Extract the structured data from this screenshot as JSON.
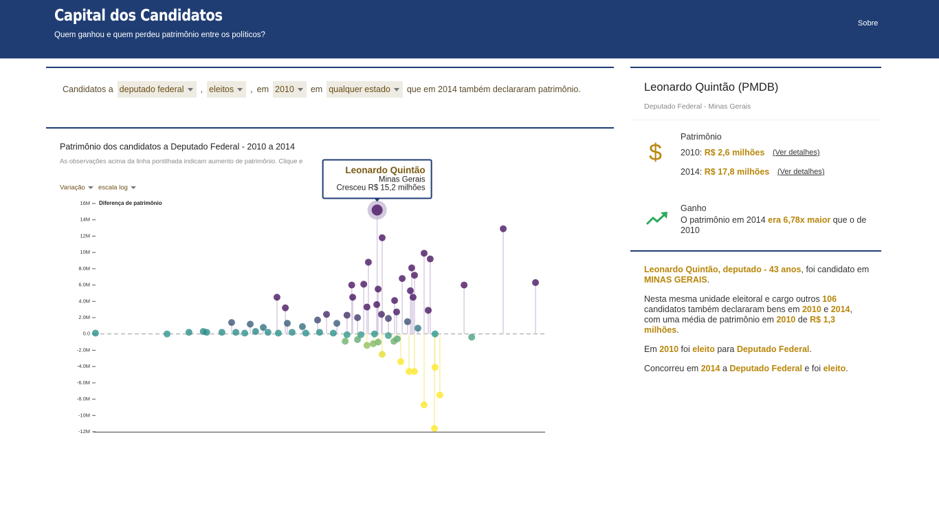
{
  "header": {
    "title": "Capital dos Candidatos",
    "subtitle": "Quem ganhou e quem perdeu patrimônio entre os políticos?",
    "nav": "Sobre"
  },
  "filters": {
    "prefix": "Candidatos a",
    "cargo": "deputado federal",
    "sep1": ",",
    "status": "eleitos",
    "sep2": ",",
    "em1": "em",
    "ano": "2010",
    "em2": "em",
    "estado": "qualquer estado",
    "suffix": "que em 2014 também declararam patrimônio."
  },
  "chart_data": {
    "type": "scatter",
    "title": "Patrimônio dos candidatos a Deputado Federal - 2010 a 2014",
    "subtitle": "As observações acima da linha pontilhada indicam aumento de patrimônio. Clique e",
    "controls": [
      "Variação",
      "escala log"
    ],
    "ylabel": "Diferença de patrimônio",
    "log_x": true,
    "xlim": [
      10000,
      70000000
    ],
    "ylim": [
      -12000000,
      16000000
    ],
    "yticks": [
      {
        "value": 16000000,
        "label": "16M"
      },
      {
        "value": 14000000,
        "label": "14M"
      },
      {
        "value": 12000000,
        "label": "12M"
      },
      {
        "value": 10000000,
        "label": "10M"
      },
      {
        "value": 8000000,
        "label": "8.0M"
      },
      {
        "value": 6000000,
        "label": "6.0M"
      },
      {
        "value": 4000000,
        "label": "4.0M"
      },
      {
        "value": 2000000,
        "label": "2.0M"
      },
      {
        "value": 0,
        "label": "0.0"
      },
      {
        "value": -2000000,
        "label": "-2.0M"
      },
      {
        "value": -4000000,
        "label": "-4.0M"
      },
      {
        "value": -6000000,
        "label": "-6.0M"
      },
      {
        "value": -8000000,
        "label": "-8.0M"
      },
      {
        "value": -10000000,
        "label": "-10M"
      },
      {
        "value": -12000000,
        "label": "-12M"
      }
    ],
    "colors": {
      "positive": "#45115f",
      "zero": "#27958c",
      "negative": "#fde725"
    },
    "stem_colors": {
      "positive": "#d8cce2",
      "negative": "#f7f0a8"
    },
    "x": [
      2600000,
      2870000,
      30800000,
      6530000,
      7360000,
      2190000,
      5120000,
      5410000,
      4250000,
      58000000,
      14300000,
      1580000,
      2000000,
      2650000,
      4990000,
      365000,
      5260000,
      1610000,
      3660000,
      430000,
      2580000,
      2130000,
      7080000,
      3810000,
      964000,
      1440000,
      2830000,
      1770000,
      4720000,
      150000,
      216000,
      809000,
      1180000,
      447000,
      5780000,
      279000,
      601000,
      3240000,
      10400,
      42300,
      65000,
      86000,
      92000,
      124000,
      163000,
      194000,
      240000,
      306000,
      375000,
      491000,
      643000,
      841000,
      1100000,
      1440000,
      1890000,
      2470000,
      3240000,
      3860000,
      8090000,
      16600000,
      1390000,
      1770000,
      2130000,
      2650000,
      2410000,
      2870000,
      3610000,
      4130000,
      4860000,
      5410000,
      6530000,
      8090000,
      8890000,
      8000000
    ],
    "values": [
      15200000,
      11800000,
      12900000,
      9900000,
      9200000,
      8800000,
      8100000,
      7200000,
      6800000,
      6300000,
      6000000,
      6000000,
      6100000,
      5500000,
      5300000,
      4500000,
      4500000,
      4500000,
      4100000,
      3200000,
      3600000,
      3300000,
      2900000,
      2700000,
      2400000,
      2300000,
      2400000,
      2000000,
      1500000,
      1400000,
      1200000,
      1700000,
      1300000,
      1300000,
      700000,
      800000,
      900000,
      1900000,
      100000,
      0,
      200000,
      300000,
      200000,
      200000,
      200000,
      100000,
      300000,
      200000,
      100000,
      200000,
      100000,
      200000,
      100000,
      -100000,
      -100000,
      0,
      -200000,
      -600000,
      0,
      -400000,
      -900000,
      -700000,
      -1400000,
      -1000000,
      -1200000,
      -2500000,
      -900000,
      -3400000,
      -4600000,
      -4600000,
      -8700000,
      -4100000,
      -7500000,
      -11600000
    ],
    "tooltip": {
      "name": "Leonardo Quintão",
      "state": "Minas Gerais",
      "text": "Cresceu R$ 15,2 milhões"
    }
  },
  "sidebar": {
    "name": "Leonardo Quintão (PMDB)",
    "role": "Deputado Federal - Minas Gerais",
    "patrimonio": {
      "icon": "$",
      "label": "Patrimônio",
      "rows": [
        {
          "year": "2010:",
          "value": "R$ 2,6 milhões",
          "link": "(Ver detalhes)"
        },
        {
          "year": "2014:",
          "value": "R$ 17,8 milhões",
          "link": "(Ver detalhes)"
        }
      ]
    },
    "ganho": {
      "label": "Ganho",
      "parts": [
        {
          "text": "O patrimônio em 2014 ",
          "hl": false
        },
        {
          "text": "era 6,78x maior",
          "hl": true
        },
        {
          "text": " que o de 2010",
          "hl": false
        }
      ]
    },
    "bio": [
      [
        {
          "text": "Leonardo Quintão, deputado - 43 anos",
          "hl": true
        },
        {
          "text": ", foi candidato em ",
          "hl": false
        },
        {
          "text": "MINAS GERAIS",
          "hl": true
        },
        {
          "text": ".",
          "hl": false
        }
      ],
      [
        {
          "text": "Nesta mesma unidade eleitoral e cargo outros ",
          "hl": false
        },
        {
          "text": "106",
          "hl": true
        },
        {
          "text": " candidatos também declararam bens em ",
          "hl": false
        },
        {
          "text": "2010",
          "hl": true
        },
        {
          "text": " e ",
          "hl": false
        },
        {
          "text": "2014",
          "hl": true
        },
        {
          "text": ", com uma média de patrimônio em ",
          "hl": false
        },
        {
          "text": "2010",
          "hl": true
        },
        {
          "text": " de ",
          "hl": false
        },
        {
          "text": "R$ 1,3 milhões",
          "hl": true
        },
        {
          "text": ".",
          "hl": false
        }
      ],
      [
        {
          "text": "Em ",
          "hl": false
        },
        {
          "text": "2010",
          "hl": true
        },
        {
          "text": " foi ",
          "hl": false
        },
        {
          "text": "eleito",
          "hl": true
        },
        {
          "text": " para ",
          "hl": false
        },
        {
          "text": "Deputado Federal",
          "hl": true
        },
        {
          "text": ".",
          "hl": false
        }
      ],
      [
        {
          "text": "Concorreu em ",
          "hl": false
        },
        {
          "text": "2014",
          "hl": true
        },
        {
          "text": " a ",
          "hl": false
        },
        {
          "text": "Deputado Federal",
          "hl": true
        },
        {
          "text": " e foi ",
          "hl": false
        },
        {
          "text": "eleito",
          "hl": true
        },
        {
          "text": ".",
          "hl": false
        }
      ]
    ]
  }
}
